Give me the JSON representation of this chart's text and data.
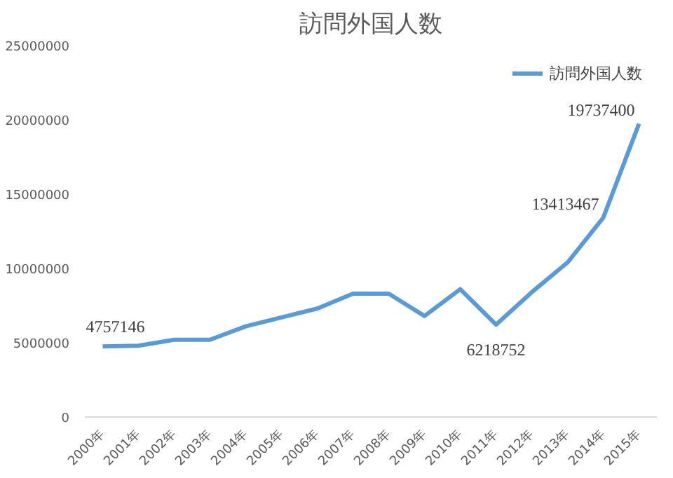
{
  "chart_data": {
    "type": "line",
    "title": "訪問外国人数",
    "categories": [
      "2000年",
      "2001年",
      "2002年",
      "2003年",
      "2004年",
      "2005年",
      "2006年",
      "2007年",
      "2008年",
      "2009年",
      "2010年",
      "2011年",
      "2012年",
      "2013年",
      "2014年",
      "2015年"
    ],
    "series": [
      {
        "name": "訪問外国人数",
        "color": "#5b9bd5",
        "values": [
          4757146,
          4800000,
          5200000,
          5200000,
          6100000,
          6700000,
          7300000,
          8300000,
          8300000,
          6800000,
          8600000,
          6218752,
          8400000,
          10400000,
          13413467,
          19737400
        ],
        "value_labels": [
          "4757146",
          null,
          null,
          null,
          null,
          null,
          null,
          null,
          null,
          null,
          null,
          "6218752",
          null,
          null,
          "13413467",
          "19737400"
        ]
      }
    ],
    "ylim": [
      0,
      25000000
    ],
    "yticks": [
      0,
      5000000,
      10000000,
      15000000,
      20000000,
      25000000
    ],
    "grid": false,
    "legend": "top right",
    "marker": "none",
    "line_style": "solid"
  }
}
